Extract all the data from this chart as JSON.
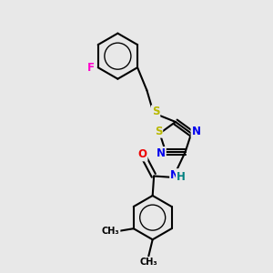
{
  "background_color": "#e8e8e8",
  "bond_color": "#000000",
  "lw": 1.5,
  "atom_colors": {
    "F": "#ff00cc",
    "S": "#b8b800",
    "N": "#0000ee",
    "O": "#ee0000",
    "H": "#008080"
  },
  "atom_fontsizes": {
    "F": 8.5,
    "S": 8.5,
    "N": 8.5,
    "O": 8.5,
    "NH": 8.5,
    "C_label": 7.0,
    "CH3": 7.0
  }
}
